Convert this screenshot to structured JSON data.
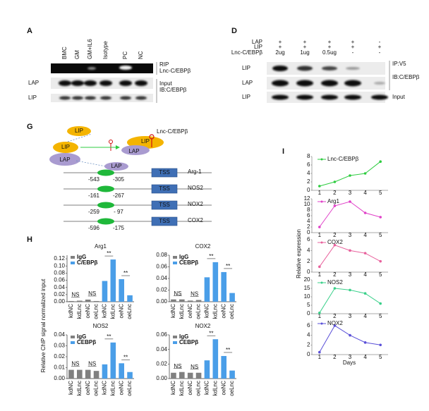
{
  "figure": {
    "H_label": "H",
    "I_label": "I",
    "H_y_label": "Relative ChIP signal normalized input",
    "I_y_label": "Relative expression",
    "I_x_label": "Days"
  },
  "panels": {
    "A": {
      "label": "A",
      "lanes": [
        "BMC",
        "GM",
        "GM+IL6",
        "Isotype",
        "PC",
        "NC"
      ],
      "rip": "RIP",
      "rip_target": "Lnc-C/EBPβ",
      "rows": [
        "LAP",
        "LIP"
      ],
      "input": "Input",
      "ib": "IB:C/EBPβ"
    },
    "D": {
      "label": "D",
      "header_rows": [
        "LAP",
        "LIP",
        "Lnc-C/EBPβ"
      ],
      "header_cells": [
        [
          "+",
          "+",
          "+",
          "+",
          "-"
        ],
        [
          "+",
          "+",
          "+",
          "+",
          "+"
        ],
        [
          "2ug",
          "1ug",
          "0.5ug",
          "-",
          "-"
        ]
      ],
      "rows": [
        "LIP",
        "LAP",
        "LIP"
      ],
      "ip": "IP:V5",
      "ib": "IB:C/EBPβ",
      "input": "Input"
    },
    "G": {
      "label": "G",
      "lip": "LIP",
      "lap": "LAP",
      "lnc": "Lnc-C/EBPβ",
      "tss": "TSS",
      "promoters": [
        {
          "start": "-543",
          "end": "-305",
          "gene": "Arg-1"
        },
        {
          "start": "-161",
          "end": "-267",
          "gene": "NOS2"
        },
        {
          "start": "-259",
          "end": "- 97",
          "gene": "NOX2"
        },
        {
          "start": "-596",
          "end": "-175",
          "gene": "COX2"
        }
      ]
    }
  },
  "chart_data": [
    {
      "type": "bar",
      "title": "Arg1",
      "categories": [
        "kdNC",
        "kdLnc",
        "oeNC",
        "oeLnc",
        "kdNC",
        "kdLnc",
        "oeNC",
        "oeLnc"
      ],
      "series": [
        {
          "name": "IgG",
          "color": "#808080",
          "values": [
            0.002,
            0.003,
            0.006,
            0.002,
            null,
            null,
            null,
            null
          ]
        },
        {
          "name": "C/EBPβ",
          "color": "#4a9ee8",
          "values": [
            null,
            null,
            null,
            null,
            0.058,
            0.118,
            0.063,
            0.018
          ]
        }
      ],
      "ylim": [
        0,
        0.13
      ],
      "yticks": [
        {
          "value": 0,
          "label": "0.00"
        },
        {
          "value": 0.02,
          "label": "0.02"
        },
        {
          "value": 0.04,
          "label": "0.04"
        },
        {
          "value": 0.06,
          "label": "0.06"
        },
        {
          "value": 0.08,
          "label": "0.08"
        },
        {
          "value": 0.1,
          "label": "0.10"
        },
        {
          "value": 0.12,
          "label": "0.12"
        }
      ],
      "annotations": [
        "NS",
        "NS",
        "**",
        "**"
      ]
    },
    {
      "type": "bar",
      "title": "COX2",
      "categories": [
        "kdNC",
        "kdLnc",
        "oeNC",
        "oeLnc",
        "kdNC",
        "kdLnc",
        "oeNC",
        "oeLnc"
      ],
      "series": [
        {
          "name": "IgG",
          "color": "#808080",
          "values": [
            0.004,
            0.004,
            0.002,
            0.003,
            null,
            null,
            null,
            null
          ]
        },
        {
          "name": "CEBPβ",
          "color": "#4a9ee8",
          "values": [
            null,
            null,
            null,
            null,
            0.042,
            0.068,
            0.051,
            0.015
          ]
        }
      ],
      "ylim": [
        0,
        0.08
      ],
      "yticks": [
        {
          "value": 0,
          "label": "0.00"
        },
        {
          "value": 0.02,
          "label": "0.02"
        },
        {
          "value": 0.04,
          "label": "0.04"
        },
        {
          "value": 0.06,
          "label": "0.06"
        },
        {
          "value": 0.08,
          "label": "0.08"
        }
      ],
      "annotations": [
        "NS",
        "NS",
        "**",
        "**"
      ]
    },
    {
      "type": "bar",
      "title": "NOS2",
      "categories": [
        "kdNC",
        "kdLnc",
        "oeNC",
        "oeLnc",
        "kdNC",
        "kdLnc",
        "oeNC",
        "oeLnc"
      ],
      "series": [
        {
          "name": "IgG",
          "color": "#808080",
          "values": [
            0.008,
            0.008,
            0.008,
            0.007,
            null,
            null,
            null,
            null
          ]
        },
        {
          "name": "CEBPβ",
          "color": "#4a9ee8",
          "values": [
            null,
            null,
            null,
            null,
            0.013,
            0.033,
            0.014,
            0.006
          ]
        }
      ],
      "ylim": [
        0,
        0.04
      ],
      "yticks": [
        {
          "value": 0,
          "label": "0.00"
        },
        {
          "value": 0.01,
          "label": "0.01"
        },
        {
          "value": 0.02,
          "label": "0.02"
        },
        {
          "value": 0.03,
          "label": "0.03"
        },
        {
          "value": 0.04,
          "label": "0.04"
        }
      ],
      "annotations": [
        "NS",
        "NS",
        "**",
        "**"
      ]
    },
    {
      "type": "bar",
      "title": "NOX2",
      "categories": [
        "kdNC",
        "kdLnc",
        "oeNC",
        "oeLnc",
        "kdNC",
        "kdLnc",
        "oeNC",
        "oeLnc"
      ],
      "series": [
        {
          "name": "IgG",
          "color": "#808080",
          "values": [
            0.008,
            0.009,
            0.008,
            0.008,
            null,
            null,
            null,
            null
          ]
        },
        {
          "name": "CEBPβ",
          "color": "#4a9ee8",
          "values": [
            null,
            null,
            null,
            null,
            0.025,
            0.054,
            0.031,
            0.011
          ]
        }
      ],
      "ylim": [
        0,
        0.06
      ],
      "yticks": [
        {
          "value": 0,
          "label": "0.00"
        },
        {
          "value": 0.02,
          "label": "0.02"
        },
        {
          "value": 0.04,
          "label": "0.04"
        },
        {
          "value": 0.06,
          "label": "0.06"
        }
      ],
      "annotations": [
        "NS",
        "NS",
        "**",
        "**"
      ]
    },
    {
      "type": "line",
      "x": [
        1,
        2,
        3,
        4,
        5
      ],
      "series": [
        {
          "name": "Lnc-C/EBPβ",
          "color": "#2ecc40",
          "values": [
            1,
            2,
            3.5,
            4,
            6.8
          ]
        }
      ],
      "xlim": [
        0.5,
        5.5
      ],
      "xticks": [
        1,
        2,
        3,
        4,
        5
      ],
      "ylim": [
        0,
        8
      ],
      "yticks": [
        0,
        2,
        4,
        6,
        8
      ]
    },
    {
      "type": "line",
      "x": [
        1,
        2,
        3,
        4,
        5
      ],
      "series": [
        {
          "name": "Arg1",
          "color": "#e040c8",
          "values": [
            2,
            9.5,
            11,
            7,
            5.5
          ]
        }
      ],
      "xlim": [
        0.5,
        5.5
      ],
      "xticks": [
        1,
        2,
        3,
        4,
        5
      ],
      "ylim": [
        0,
        12
      ],
      "yticks": [
        0,
        2,
        4,
        6,
        8,
        10,
        12
      ]
    },
    {
      "type": "line",
      "x": [
        1,
        2,
        3,
        4,
        5
      ],
      "series": [
        {
          "name": "COX2",
          "color": "#e8609c",
          "values": [
            1,
            5,
            4,
            3.5,
            2
          ]
        }
      ],
      "xlim": [
        0.5,
        5.5
      ],
      "xticks": [
        1,
        2,
        3,
        4,
        5
      ],
      "ylim": [
        0,
        6
      ],
      "yticks": [
        0,
        2,
        4,
        6
      ]
    },
    {
      "type": "line",
      "x": [
        1,
        2,
        3,
        4,
        5
      ],
      "series": [
        {
          "name": "NOS2",
          "color": "#3ad08a",
          "values": [
            0.5,
            15,
            14,
            12,
            6
          ]
        }
      ],
      "xlim": [
        0.5,
        5.5
      ],
      "xticks": [
        1,
        2,
        3,
        4,
        5
      ],
      "ylim": [
        0,
        20
      ],
      "yticks": [
        0,
        5,
        10,
        15,
        20
      ]
    },
    {
      "type": "line",
      "x": [
        1,
        2,
        3,
        4,
        5
      ],
      "series": [
        {
          "name": "NOX2",
          "color": "#5a50d8",
          "values": [
            0.5,
            6,
            4,
            2.5,
            2
          ]
        }
      ],
      "xlim": [
        0.5,
        5.5
      ],
      "xticks": [
        1,
        2,
        3,
        4,
        5
      ],
      "ylim": [
        0,
        7
      ],
      "yticks": [
        0,
        2,
        4,
        6
      ]
    }
  ]
}
